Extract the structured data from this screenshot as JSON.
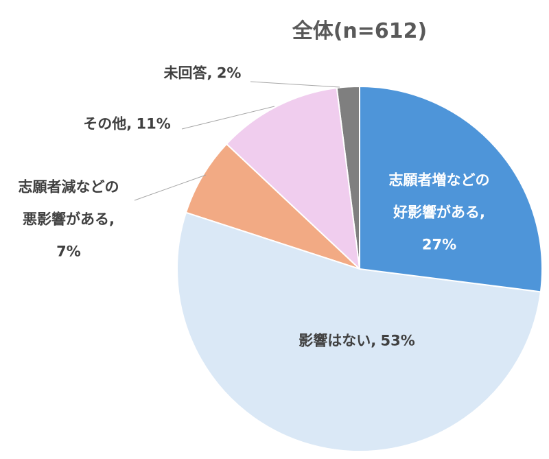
{
  "chart_data": {
    "type": "pie",
    "title": "全体(n=612)",
    "categories": [
      "志願者増などの好影響がある,",
      "影響はない,",
      "志願者減などの悪影響がある,",
      "その他,",
      "未回答,"
    ],
    "values": [
      27,
      53,
      7,
      11,
      2
    ],
    "value_labels": [
      "27%",
      "53%",
      "7%",
      "11%",
      "2%"
    ],
    "colors": [
      "#4e95d9",
      "#dae8f6",
      "#f2aa84",
      "#f0cdee",
      "#7f7f7f"
    ]
  }
}
